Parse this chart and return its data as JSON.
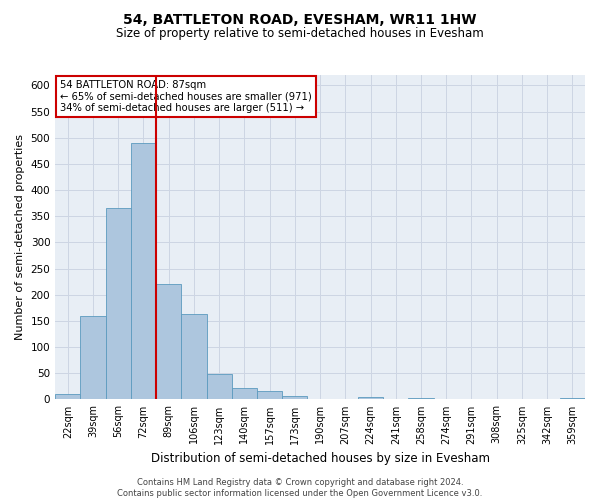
{
  "title": "54, BATTLETON ROAD, EVESHAM, WR11 1HW",
  "subtitle": "Size of property relative to semi-detached houses in Evesham",
  "xlabel": "Distribution of semi-detached houses by size in Evesham",
  "ylabel": "Number of semi-detached properties",
  "footer_line1": "Contains HM Land Registry data © Crown copyright and database right 2024.",
  "footer_line2": "Contains public sector information licensed under the Open Government Licence v3.0.",
  "annotation_title": "54 BATTLETON ROAD: 87sqm",
  "annotation_line1": "← 65% of semi-detached houses are smaller (971)",
  "annotation_line2": "34% of semi-detached houses are larger (511) →",
  "categories": [
    "22sqm",
    "39sqm",
    "56sqm",
    "72sqm",
    "89sqm",
    "106sqm",
    "123sqm",
    "140sqm",
    "157sqm",
    "173sqm",
    "190sqm",
    "207sqm",
    "224sqm",
    "241sqm",
    "258sqm",
    "274sqm",
    "291sqm",
    "308sqm",
    "325sqm",
    "342sqm",
    "359sqm"
  ],
  "bar_heights": [
    10,
    160,
    365,
    490,
    220,
    163,
    48,
    22,
    17,
    7,
    0,
    0,
    5,
    0,
    3,
    0,
    0,
    0,
    0,
    0,
    3
  ],
  "bar_color": "#adc6de",
  "bar_edge_color": "#5b9abf",
  "vline_color": "#cc0000",
  "vline_index": 4,
  "grid_color": "#cdd5e3",
  "background_color": "#e8eef5",
  "ylim": [
    0,
    620
  ],
  "yticks": [
    0,
    50,
    100,
    150,
    200,
    250,
    300,
    350,
    400,
    450,
    500,
    550,
    600
  ],
  "annotation_box_facecolor": "#ffffff",
  "annotation_box_edgecolor": "#cc0000",
  "title_fontsize": 10,
  "subtitle_fontsize": 8.5,
  "ylabel_fontsize": 8,
  "xlabel_fontsize": 8.5,
  "tick_fontsize": 7,
  "footer_fontsize": 6
}
